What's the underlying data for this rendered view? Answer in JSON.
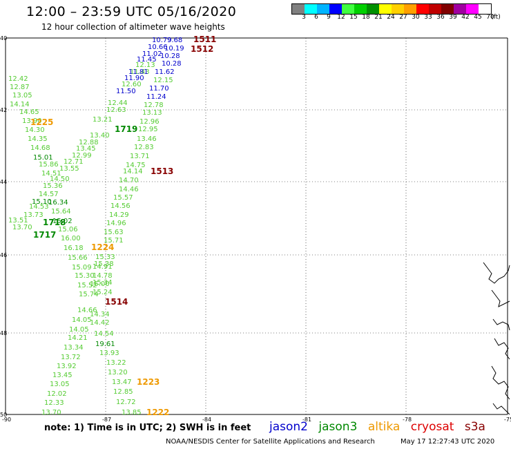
{
  "header": {
    "title": "12:00 – 23:59 UTC 05/16/2020",
    "subtitle": "12 hour collection of altimeter wave heights"
  },
  "colorbar": {
    "colors": [
      "#808080",
      "#00ffff",
      "#00b4ff",
      "#0000ff",
      "#40ff40",
      "#00d000",
      "#009000",
      "#ffff00",
      "#ffd000",
      "#ffa000",
      "#ff0000",
      "#c00000",
      "#800000",
      "#a000a0",
      "#ff00ff",
      "#ffffff"
    ],
    "labels": [
      "3",
      "6",
      "9",
      "12",
      "15",
      "18",
      "21",
      "24",
      "27",
      "30",
      "33",
      "36",
      "39",
      "42",
      "45",
      "70",
      "(ft)"
    ]
  },
  "axes": {
    "lat_ticks": [
      "40",
      "42",
      "44",
      "46",
      "48",
      "50"
    ],
    "lon_ticks": [
      "-90",
      "-87",
      "-84",
      "-81",
      "-78",
      "-75"
    ]
  },
  "satellite_colors": {
    "jason2": "#0000cc",
    "jason3": "#008800",
    "jason3_light": "#55cc33",
    "altika": "#ee9900",
    "cryosat": "#dd0000",
    "s3a": "#880000"
  },
  "track_light_green": {
    "color": "#55cc33",
    "labels": [
      "12.42",
      "12.87",
      "13.05",
      "14.14",
      "14.65",
      "13.90",
      "14.30",
      "14.35",
      "14.68",
      "15.86",
      "14.51",
      "15.36",
      "14.57",
      "14.53",
      "13.73",
      "13.51",
      "13.70",
      "15.64",
      "15.06",
      "16.00",
      "15.66",
      "15.09",
      "15.30",
      "15.52",
      "15.74",
      "14.66",
      "14.05",
      "14.05",
      "14.21",
      "13.34",
      "13.72",
      "13.92",
      "13.45",
      "13.05",
      "12.02",
      "12.33",
      "13.70",
      "12.13",
      "11.43",
      "12.60",
      "12.44",
      "12.63",
      "13.21",
      "13.40",
      "12.88",
      "13.45",
      "12.99",
      "12.71",
      "13.55",
      "14.50",
      "16.18",
      "14.91",
      "14.78",
      "15.00",
      "14.42",
      "14.34",
      "14.54",
      "13.93",
      "13.22",
      "13.20",
      "13.47",
      "12.85",
      "12.72",
      "13.85",
      "12.15",
      "12.78",
      "13.13",
      "12.96",
      "12.95",
      "13.46",
      "12.83",
      "13.71",
      "14.75",
      "14.14",
      "14.70",
      "14.46",
      "15.57",
      "14.56",
      "14.29",
      "14.96",
      "15.63",
      "15.71",
      "15.33",
      "15.38",
      "15.34",
      "15.24",
      "15.11"
    ]
  },
  "track_dark_green": {
    "color": "#008800",
    "labels": [
      "15.01",
      "15.10",
      "16.34",
      "15.02",
      "19.61"
    ],
    "times": [
      "1719",
      "1718",
      "1717"
    ]
  },
  "track_blue": {
    "color": "#0000cc",
    "labels": [
      "10.79",
      "9.68",
      "10.66",
      "10.19",
      "11.02",
      "10.28",
      "11.45",
      "10.28",
      "11.81",
      "11.62",
      "11.90",
      "11.70",
      "11.50",
      "11.24"
    ]
  },
  "track_altika": {
    "color": "#ee9900",
    "times": [
      "1225",
      "1224",
      "1223",
      "1222"
    ]
  },
  "track_s3a": {
    "color": "#880000",
    "times": [
      "1511",
      "1512",
      "1513",
      "1514"
    ]
  },
  "footer": {
    "note": "note: 1) Time is in UTC; 2) SWH is in feet",
    "legend": [
      "jason2",
      "jason3",
      "altika",
      "cryosat",
      "s3a"
    ],
    "credit": "NOAA/NESDIS Center for Satellite Applications and Research",
    "credit_time": "May 17 12:27:43 UTC 2020"
  }
}
